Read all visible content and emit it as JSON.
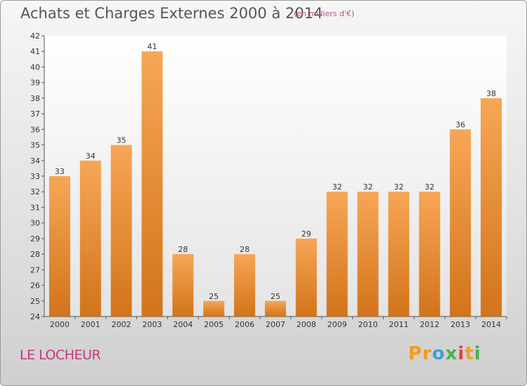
{
  "header": {
    "title": "Achats et Charges Externes 2000 à 2014",
    "subtitle": "(en milliers d'€)"
  },
  "footer": {
    "commune": "LE LOCHEUR",
    "logo": "Proxiti",
    "logo_colors": [
      "#f39a1e",
      "#f39a1e",
      "#3aa0d8",
      "#4caf50",
      "#e3423b",
      "#f0a020",
      "#4caf50"
    ]
  },
  "chart_data": {
    "type": "bar",
    "title": "Achats et Charges Externes 2000 à 2014",
    "subtitle": "(en milliers d'€)",
    "categories": [
      "2000",
      "2001",
      "2002",
      "2003",
      "2004",
      "2005",
      "2006",
      "2007",
      "2008",
      "2009",
      "2010",
      "2011",
      "2012",
      "2013",
      "2014"
    ],
    "values": [
      33,
      34,
      35,
      41,
      28,
      25,
      28,
      25,
      29,
      32,
      32,
      32,
      32,
      36,
      38
    ],
    "ylim": [
      24,
      42
    ],
    "yticks": [
      24,
      25,
      26,
      27,
      28,
      29,
      30,
      31,
      32,
      33,
      34,
      35,
      36,
      37,
      38,
      39,
      40,
      41,
      42
    ],
    "xlabel": "",
    "ylabel": "",
    "grid": false,
    "bar_color_top": "#f7a656",
    "bar_color_bottom": "#d2741a",
    "show_value_labels": true
  }
}
